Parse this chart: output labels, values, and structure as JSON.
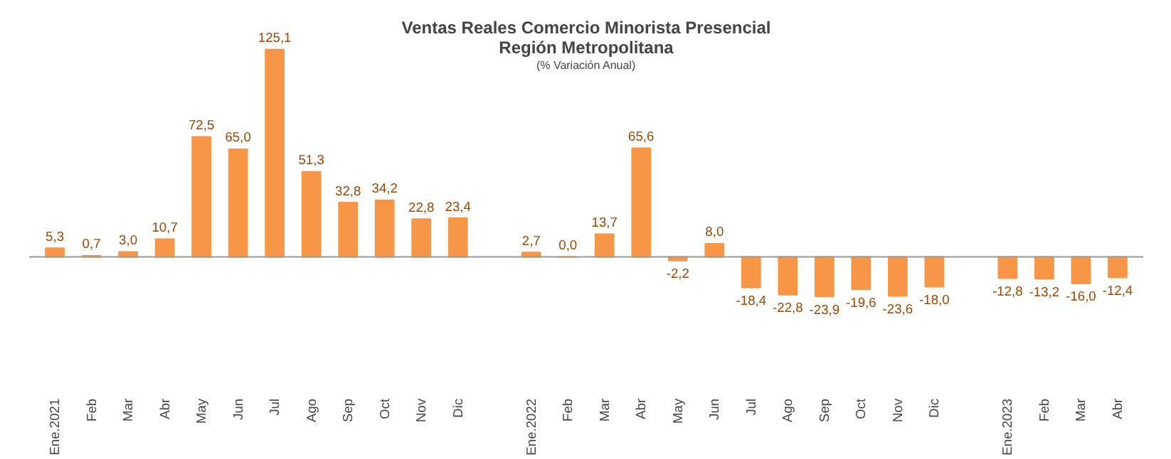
{
  "chart_data": {
    "type": "bar",
    "title": "Ventas Reales Comercio Minorista Presencial",
    "subtitle": "Región Metropolitana",
    "annotations": [
      "(% Variación Anual)"
    ],
    "categories": [
      "Ene.2021",
      "Feb",
      "Mar",
      "Abr",
      "May",
      "Jun",
      "Jul",
      "Ago",
      "Sep",
      "Oct",
      "Nov",
      "Dic",
      null,
      "Ene.2022",
      "Feb",
      "Mar",
      "Abr",
      "May",
      "Jun",
      "Jul",
      "Ago",
      "Sep",
      "Oct",
      "Nov",
      "Dic",
      null,
      "Ene.2023",
      "Feb",
      "Mar",
      "Abr"
    ],
    "values": [
      5.3,
      0.7,
      3.0,
      10.7,
      72.5,
      65.0,
      125.1,
      51.3,
      32.8,
      34.2,
      22.8,
      23.4,
      null,
      2.7,
      0.0,
      13.7,
      65.6,
      -2.2,
      8.0,
      -18.4,
      -22.8,
      -23.9,
      -19.6,
      -23.6,
      -18.0,
      null,
      -12.8,
      -13.2,
      -16.0,
      -12.4
    ],
    "value_labels": [
      "5,3",
      "0,7",
      "3,0",
      "10,7",
      "72,5",
      "65,0",
      "125,1",
      "51,3",
      "32,8",
      "34,2",
      "22,8",
      "23,4",
      null,
      "2,7",
      "0,0",
      "13,7",
      "65,6",
      "-2,2",
      "8,0",
      "-18,4",
      "-22,8",
      "-23,9",
      "-19,6",
      "-23,6",
      "-18,0",
      null,
      "-12,8",
      "-13,2",
      "-16,0",
      "-12,4"
    ],
    "color": "#f79646",
    "grid": false
  }
}
